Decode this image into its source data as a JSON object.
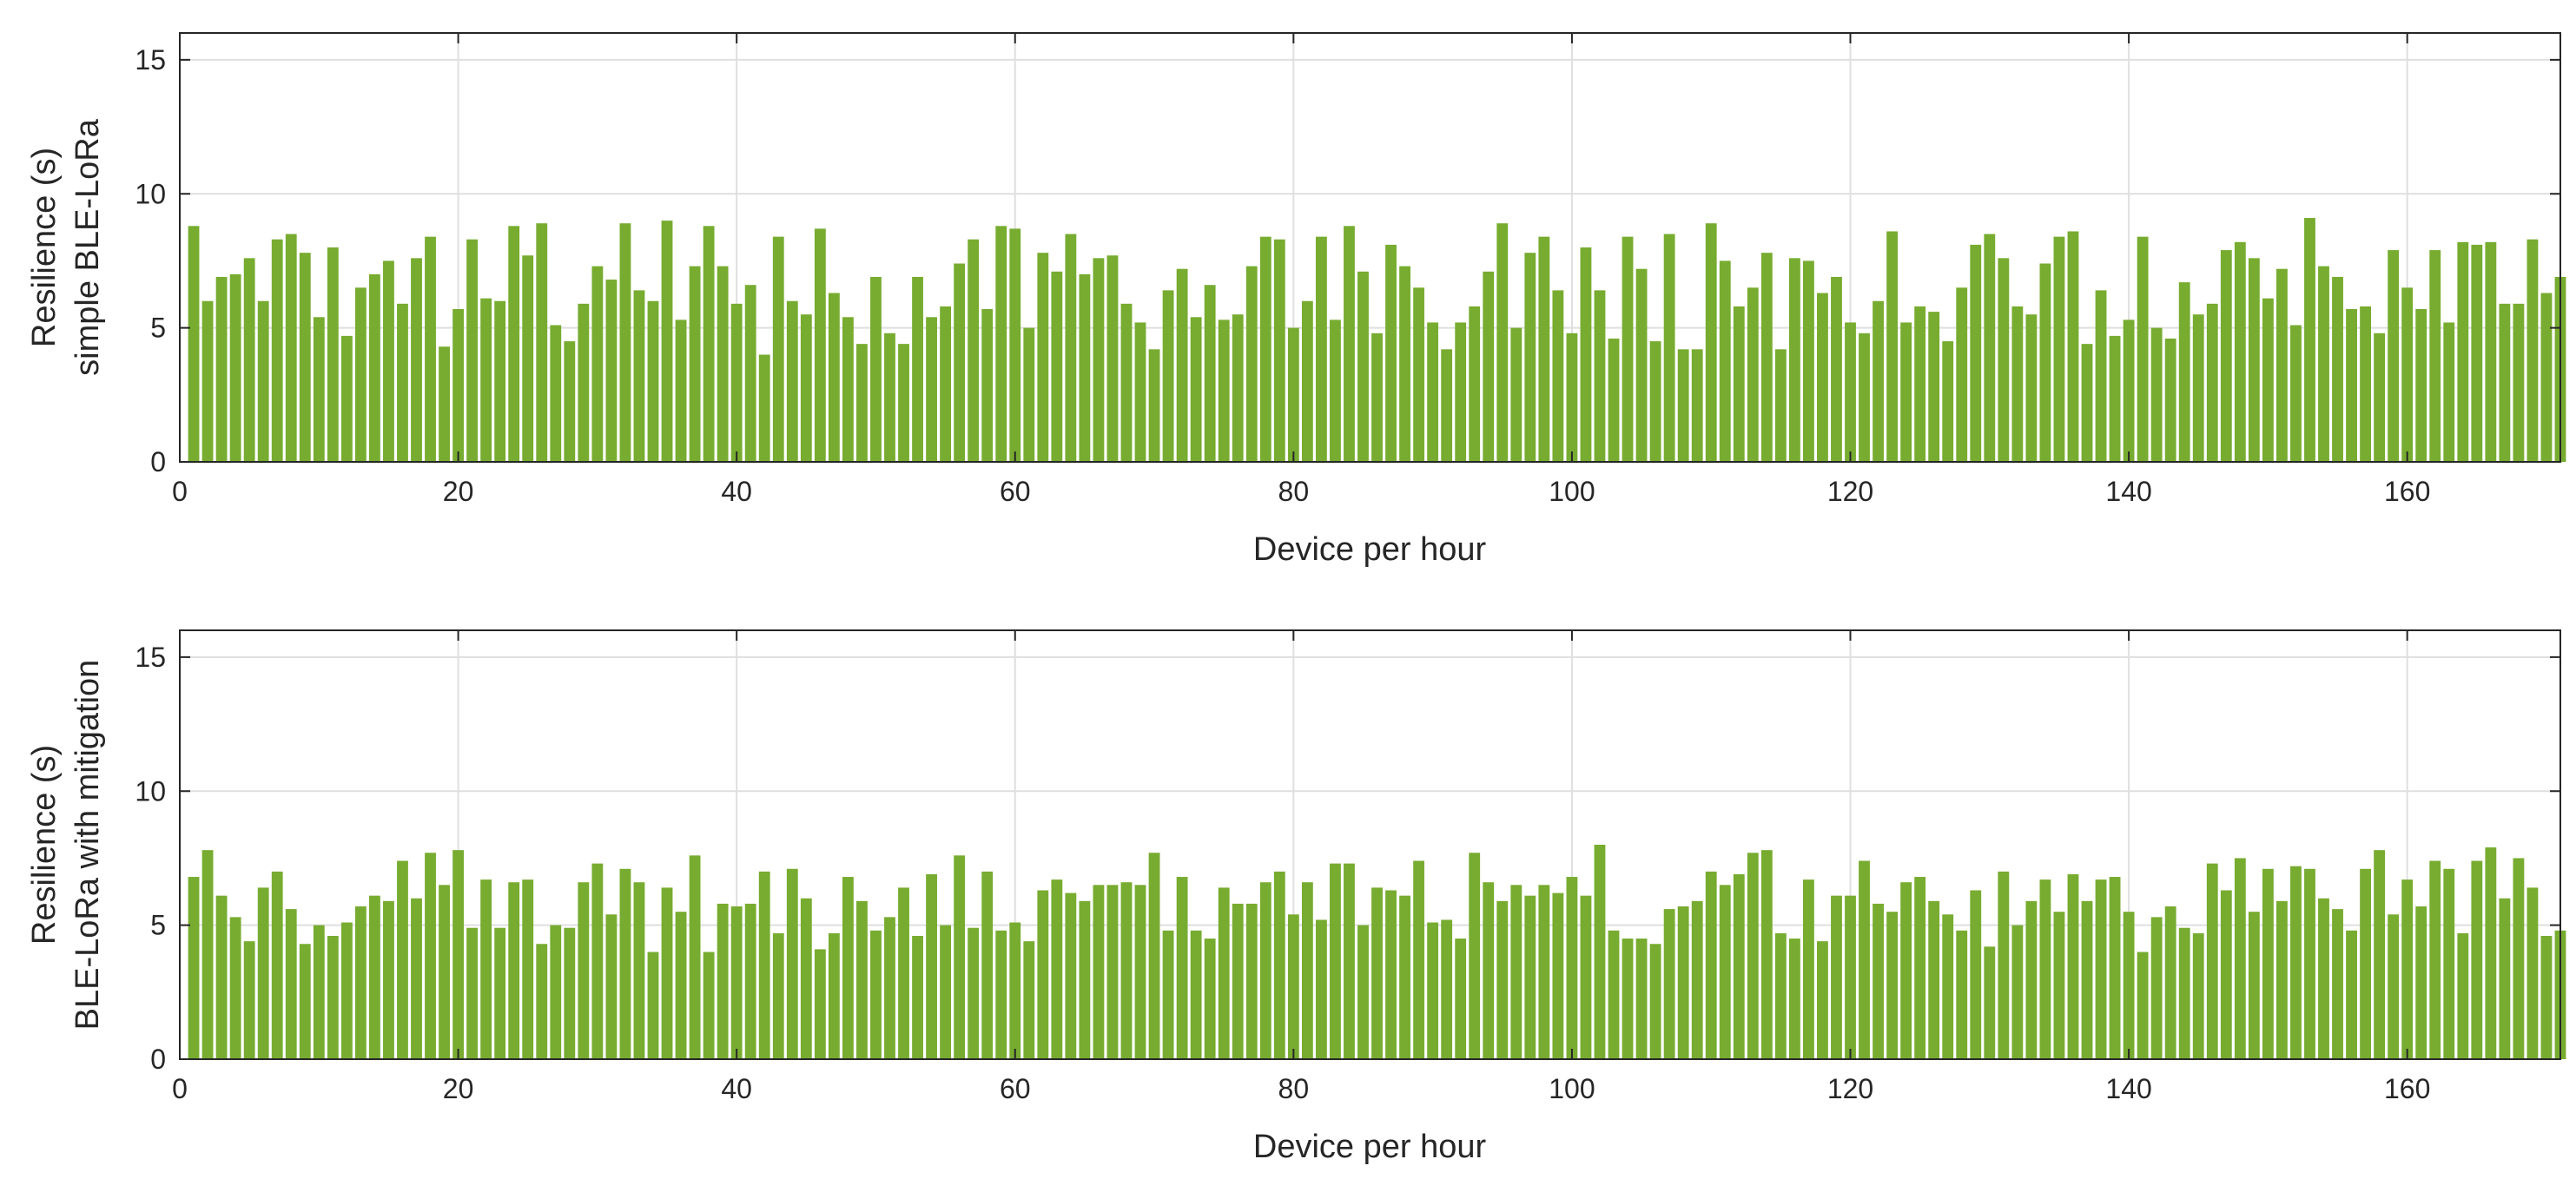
{
  "chart_data": [
    {
      "type": "bar",
      "ylabel": [
        "Resilience (s)",
        "simple BLE-LoRa"
      ],
      "xlabel": "Device per hour",
      "xlim": [
        0,
        171
      ],
      "ylim": [
        0,
        16
      ],
      "xticks": [
        0,
        20,
        40,
        60,
        80,
        100,
        120,
        140,
        160
      ],
      "yticks": [
        0,
        5,
        10,
        15
      ],
      "grid": true,
      "color": "#77ac30",
      "x": [
        1,
        2,
        3,
        4,
        5,
        6,
        7,
        8,
        9,
        10,
        11,
        12,
        13,
        14,
        15,
        16,
        17,
        18,
        19,
        20,
        21,
        22,
        23,
        24,
        25,
        26,
        27,
        28,
        29,
        30,
        31,
        32,
        33,
        34,
        35,
        36,
        37,
        38,
        39,
        40,
        41,
        42,
        43,
        44,
        45,
        46,
        47,
        48,
        49,
        50,
        51,
        52,
        53,
        54,
        55,
        56,
        57,
        58,
        59,
        60,
        61,
        62,
        63,
        64,
        65,
        66,
        67,
        68,
        69,
        70,
        71,
        72,
        73,
        74,
        75,
        76,
        77,
        78,
        79,
        80,
        81,
        82,
        83,
        84,
        85,
        86,
        87,
        88,
        89,
        90,
        91,
        92,
        93,
        94,
        95,
        96,
        97,
        98,
        99,
        100,
        101,
        102,
        103,
        104,
        105,
        106,
        107,
        108,
        109,
        110,
        111,
        112,
        113,
        114,
        115,
        116,
        117,
        118,
        119,
        120,
        121,
        122,
        123,
        124,
        125,
        126,
        127,
        128,
        129,
        130,
        131,
        132,
        133,
        134,
        135,
        136,
        137,
        138,
        139,
        140,
        141,
        142,
        143,
        144,
        145,
        146,
        147,
        148,
        149,
        150,
        151,
        152,
        153,
        154,
        155,
        156,
        157,
        158,
        159,
        160,
        161,
        162,
        163,
        164,
        165,
        166,
        167,
        168,
        169,
        170,
        171
      ],
      "values": [
        8.8,
        6.0,
        6.9,
        7.0,
        7.6,
        6.0,
        8.3,
        8.5,
        7.8,
        5.4,
        8.0,
        4.7,
        6.5,
        7.0,
        7.5,
        5.9,
        7.6,
        8.4,
        4.3,
        5.7,
        8.3,
        6.1,
        6.0,
        8.8,
        7.7,
        8.9,
        5.1,
        4.5,
        5.9,
        7.3,
        6.8,
        8.9,
        6.4,
        6.0,
        9.0,
        5.3,
        7.3,
        8.8,
        7.3,
        5.9,
        6.6,
        4.0,
        8.4,
        6.0,
        5.5,
        8.7,
        6.3,
        5.4,
        4.4,
        6.9,
        4.8,
        4.4,
        6.9,
        5.4,
        5.8,
        7.4,
        8.3,
        5.7,
        8.8,
        8.7,
        5.0,
        7.8,
        7.1,
        8.5,
        7.0,
        7.6,
        7.7,
        5.9,
        5.2,
        4.2,
        6.4,
        7.2,
        5.4,
        6.6,
        5.3,
        5.5,
        7.3,
        8.4,
        8.3,
        5.0,
        6.0,
        8.4,
        5.3,
        8.8,
        7.1,
        4.8,
        8.1,
        7.3,
        6.5,
        5.2,
        4.2,
        5.2,
        5.8,
        7.1,
        8.9,
        5.0,
        7.8,
        8.4,
        6.4,
        4.8,
        8.0,
        6.4,
        4.6,
        8.4,
        7.2,
        4.5,
        8.5,
        4.2,
        4.2,
        8.9,
        7.5,
        5.8,
        6.5,
        7.8,
        4.2,
        7.6,
        7.5,
        6.3,
        6.9,
        5.2,
        4.8,
        6.0,
        8.6,
        5.2,
        5.8,
        5.6,
        4.5,
        6.5,
        8.1,
        8.5,
        7.6,
        5.8,
        5.5,
        7.4,
        8.4,
        8.6,
        4.4,
        6.4,
        4.7,
        5.3,
        8.4,
        5.0,
        4.6,
        6.7,
        5.5,
        5.9,
        7.9,
        8.2,
        7.6,
        6.1,
        7.2,
        5.1,
        9.1,
        7.3,
        6.9,
        5.7,
        5.8,
        4.8,
        7.9,
        6.5,
        5.7,
        7.9,
        5.2,
        8.2,
        8.1,
        8.2,
        5.9,
        5.9,
        8.3,
        6.3,
        6.9
      ]
    },
    {
      "type": "bar",
      "ylabel": [
        "Resilience (s)",
        "BLE-LoRa with mitigation"
      ],
      "xlabel": "Device per hour",
      "xlim": [
        0,
        171
      ],
      "ylim": [
        0,
        16
      ],
      "xticks": [
        0,
        20,
        40,
        60,
        80,
        100,
        120,
        140,
        160
      ],
      "yticks": [
        0,
        5,
        10,
        15
      ],
      "grid": true,
      "color": "#77ac30",
      "x": [
        1,
        2,
        3,
        4,
        5,
        6,
        7,
        8,
        9,
        10,
        11,
        12,
        13,
        14,
        15,
        16,
        17,
        18,
        19,
        20,
        21,
        22,
        23,
        24,
        25,
        26,
        27,
        28,
        29,
        30,
        31,
        32,
        33,
        34,
        35,
        36,
        37,
        38,
        39,
        40,
        41,
        42,
        43,
        44,
        45,
        46,
        47,
        48,
        49,
        50,
        51,
        52,
        53,
        54,
        55,
        56,
        57,
        58,
        59,
        60,
        61,
        62,
        63,
        64,
        65,
        66,
        67,
        68,
        69,
        70,
        71,
        72,
        73,
        74,
        75,
        76,
        77,
        78,
        79,
        80,
        81,
        82,
        83,
        84,
        85,
        86,
        87,
        88,
        89,
        90,
        91,
        92,
        93,
        94,
        95,
        96,
        97,
        98,
        99,
        100,
        101,
        102,
        103,
        104,
        105,
        106,
        107,
        108,
        109,
        110,
        111,
        112,
        113,
        114,
        115,
        116,
        117,
        118,
        119,
        120,
        121,
        122,
        123,
        124,
        125,
        126,
        127,
        128,
        129,
        130,
        131,
        132,
        133,
        134,
        135,
        136,
        137,
        138,
        139,
        140,
        141,
        142,
        143,
        144,
        145,
        146,
        147,
        148,
        149,
        150,
        151,
        152,
        153,
        154,
        155,
        156,
        157,
        158,
        159,
        160,
        161,
        162,
        163,
        164,
        165,
        166,
        167,
        168,
        169,
        170,
        171
      ],
      "values": [
        6.8,
        7.8,
        6.1,
        5.3,
        4.4,
        6.4,
        7.0,
        5.6,
        4.3,
        5.0,
        4.6,
        5.1,
        5.7,
        6.1,
        5.9,
        7.4,
        6.0,
        7.7,
        6.5,
        7.8,
        4.9,
        6.7,
        4.9,
        6.6,
        6.7,
        4.3,
        5.0,
        4.9,
        6.6,
        7.3,
        5.4,
        7.1,
        6.6,
        4.0,
        6.4,
        5.5,
        7.6,
        4.0,
        5.8,
        5.7,
        5.8,
        7.0,
        4.7,
        7.1,
        6.0,
        4.1,
        4.7,
        6.8,
        5.9,
        4.8,
        5.3,
        6.4,
        4.6,
        6.9,
        5.0,
        7.6,
        4.9,
        7.0,
        4.8,
        5.1,
        4.4,
        6.3,
        6.7,
        6.2,
        5.9,
        6.5,
        6.5,
        6.6,
        6.5,
        7.7,
        4.8,
        6.8,
        4.8,
        4.5,
        6.4,
        5.8,
        5.8,
        6.6,
        7.0,
        5.4,
        6.6,
        5.2,
        7.3,
        7.3,
        5.0,
        6.4,
        6.3,
        6.1,
        7.4,
        5.1,
        5.2,
        4.5,
        7.7,
        6.6,
        5.9,
        6.5,
        6.1,
        6.5,
        6.2,
        6.8,
        6.1,
        8.0,
        4.8,
        4.5,
        4.5,
        4.3,
        5.6,
        5.7,
        5.9,
        7.0,
        6.5,
        6.9,
        7.7,
        7.8,
        4.7,
        4.5,
        6.7,
        4.4,
        6.1,
        6.1,
        7.4,
        5.8,
        5.5,
        6.6,
        6.8,
        5.9,
        5.4,
        4.8,
        6.3,
        4.2,
        7.0,
        5.0,
        5.9,
        6.7,
        5.5,
        6.9,
        5.9,
        6.7,
        6.8,
        5.5,
        4.0,
        5.3,
        5.7,
        4.9,
        4.7,
        7.3,
        6.3,
        7.5,
        5.5,
        7.1,
        5.9,
        7.2,
        7.1,
        6.0,
        5.6,
        4.8,
        7.1,
        7.8,
        5.4,
        6.7,
        5.7,
        7.4,
        7.1,
        4.7,
        7.4,
        7.9,
        6.0,
        7.5,
        6.4,
        4.6,
        4.8
      ]
    }
  ]
}
